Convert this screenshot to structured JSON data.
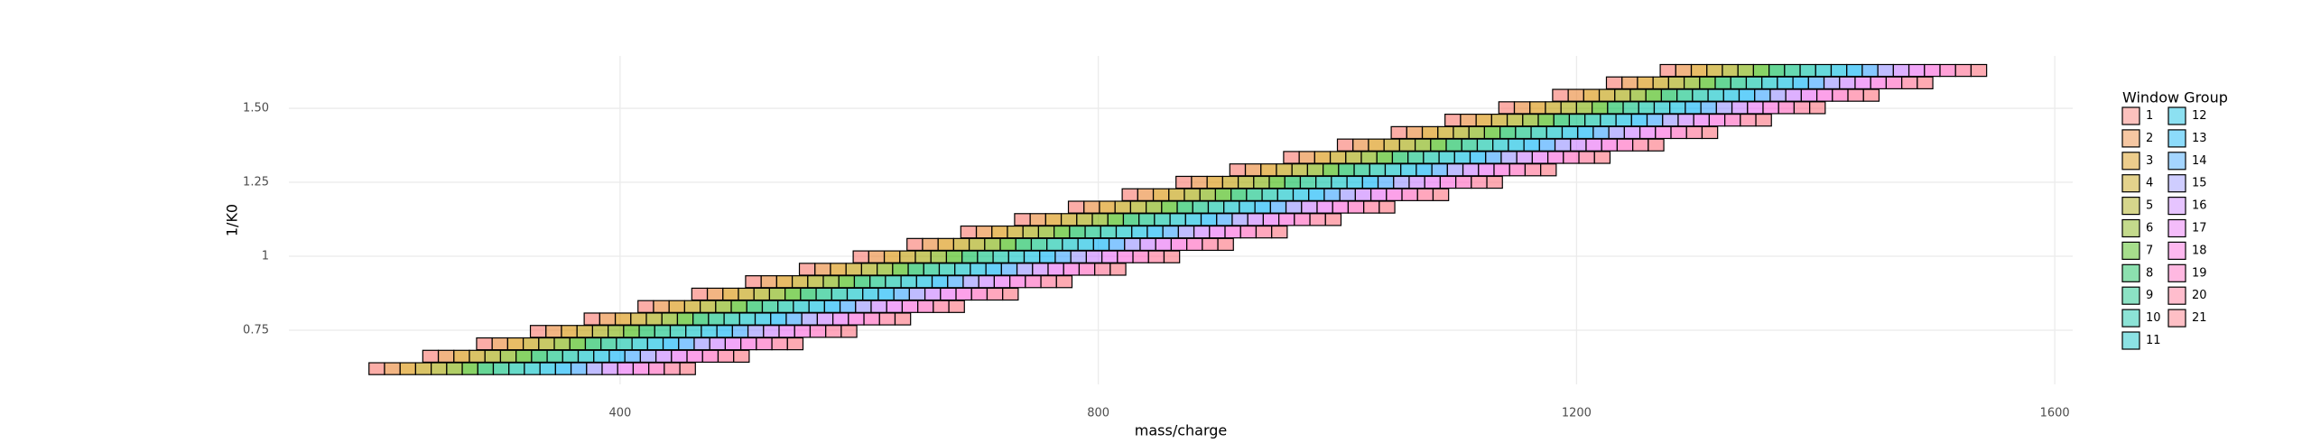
{
  "chart_data": {
    "type": "window-scheme",
    "x_label": "mass/charge",
    "y_label": "1/K0",
    "legend_title": "Window Group",
    "xlim": [
      123,
      1615
    ],
    "ylim": [
      0.567,
      1.677
    ],
    "xticks": [
      400,
      800,
      1200,
      1600
    ],
    "yticks": [
      0.75,
      1,
      1.25,
      {
        "value": 1.5,
        "label": "1.50"
      }
    ],
    "grid": true,
    "window_width": 13,
    "window_height": 0.04,
    "series": [
      {
        "name": "1",
        "color": "#F8766D"
      },
      {
        "name": "2",
        "color": "#EA8331"
      },
      {
        "name": "3",
        "color": "#D89000"
      },
      {
        "name": "4",
        "color": "#C09B00"
      },
      {
        "name": "5",
        "color": "#A3A500"
      },
      {
        "name": "6",
        "color": "#7CAE00"
      },
      {
        "name": "7",
        "color": "#39B600"
      },
      {
        "name": "8",
        "color": "#00BB4E"
      },
      {
        "name": "9",
        "color": "#00BF7D"
      },
      {
        "name": "10",
        "color": "#00C1A3"
      },
      {
        "name": "11",
        "color": "#00BFC4"
      },
      {
        "name": "12",
        "color": "#00BAE0"
      },
      {
        "name": "13",
        "color": "#00B0F6"
      },
      {
        "name": "14",
        "color": "#35A2FF"
      },
      {
        "name": "15",
        "color": "#9590FF"
      },
      {
        "name": "16",
        "color": "#C77CFF"
      },
      {
        "name": "17",
        "color": "#E76BF3"
      },
      {
        "name": "18",
        "color": "#FA62DB"
      },
      {
        "name": "19",
        "color": "#FF62BC"
      },
      {
        "name": "20",
        "color": "#FF6C91"
      },
      {
        "name": "21",
        "color": "#FC717F"
      }
    ],
    "rows": [
      {
        "mobility": 0.6,
        "mz": [
          190,
          203,
          216,
          229,
          242,
          255,
          268,
          281,
          294,
          307,
          320,
          333,
          346,
          359,
          372,
          385,
          398,
          411,
          424,
          437,
          450
        ]
      },
      {
        "mobility": 0.642,
        "mz": [
          235,
          248,
          261,
          274,
          287,
          300,
          313,
          326,
          339,
          352,
          365,
          378,
          391,
          404,
          417,
          430,
          443,
          456,
          469,
          482,
          495
        ]
      },
      {
        "mobility": 0.684,
        "mz": [
          280,
          293,
          306,
          319,
          332,
          345,
          358,
          371,
          384,
          397,
          410,
          423,
          436,
          449,
          462,
          475,
          488,
          501,
          514,
          527,
          540
        ]
      },
      {
        "mobility": 0.726,
        "mz": [
          325,
          338,
          351,
          364,
          377,
          390,
          403,
          416,
          429,
          442,
          455,
          468,
          481,
          494,
          507,
          520,
          533,
          546,
          559,
          572,
          585
        ]
      },
      {
        "mobility": 0.768,
        "mz": [
          370,
          383,
          396,
          409,
          422,
          435,
          448,
          461,
          474,
          487,
          500,
          513,
          526,
          539,
          552,
          565,
          578,
          591,
          604,
          617,
          630
        ]
      },
      {
        "mobility": 0.81,
        "mz": [
          415,
          428,
          441,
          454,
          467,
          480,
          493,
          506,
          519,
          532,
          545,
          558,
          571,
          584,
          597,
          610,
          623,
          636,
          649,
          662,
          675
        ]
      },
      {
        "mobility": 0.852,
        "mz": [
          460,
          473,
          486,
          499,
          512,
          525,
          538,
          551,
          564,
          577,
          590,
          603,
          616,
          629,
          642,
          655,
          668,
          681,
          694,
          707,
          720
        ]
      },
      {
        "mobility": 0.894,
        "mz": [
          505,
          518,
          531,
          544,
          557,
          570,
          583,
          596,
          609,
          622,
          635,
          648,
          661,
          674,
          687,
          700,
          713,
          726,
          739,
          752,
          765
        ]
      },
      {
        "mobility": 0.936,
        "mz": [
          550,
          563,
          576,
          589,
          602,
          615,
          628,
          641,
          654,
          667,
          680,
          693,
          706,
          719,
          732,
          745,
          758,
          771,
          784,
          797,
          810
        ]
      },
      {
        "mobility": 0.978,
        "mz": [
          595,
          608,
          621,
          634,
          647,
          660,
          673,
          686,
          699,
          712,
          725,
          738,
          751,
          764,
          777,
          790,
          803,
          816,
          829,
          842,
          855
        ]
      },
      {
        "mobility": 1.02,
        "mz": [
          640,
          653,
          666,
          679,
          692,
          705,
          718,
          731,
          744,
          757,
          770,
          783,
          796,
          809,
          822,
          835,
          848,
          861,
          874,
          887,
          900
        ]
      },
      {
        "mobility": 1.062,
        "mz": [
          685,
          698,
          711,
          724,
          737,
          750,
          763,
          776,
          789,
          802,
          815,
          828,
          841,
          854,
          867,
          880,
          893,
          906,
          919,
          932,
          945
        ]
      },
      {
        "mobility": 1.104,
        "mz": [
          730,
          743,
          756,
          769,
          782,
          795,
          808,
          821,
          834,
          847,
          860,
          873,
          886,
          899,
          912,
          925,
          938,
          951,
          964,
          977,
          990
        ]
      },
      {
        "mobility": 1.146,
        "mz": [
          775,
          788,
          801,
          814,
          827,
          840,
          853,
          866,
          879,
          892,
          905,
          918,
          931,
          944,
          957,
          970,
          983,
          996,
          1009,
          1022,
          1035
        ]
      },
      {
        "mobility": 1.188,
        "mz": [
          820,
          833,
          846,
          859,
          872,
          885,
          898,
          911,
          924,
          937,
          950,
          963,
          976,
          989,
          1002,
          1015,
          1028,
          1041,
          1054,
          1067,
          1080
        ]
      },
      {
        "mobility": 1.23,
        "mz": [
          865,
          878,
          891,
          904,
          917,
          930,
          943,
          956,
          969,
          982,
          995,
          1008,
          1021,
          1034,
          1047,
          1060,
          1073,
          1086,
          1099,
          1112,
          1125
        ]
      },
      {
        "mobility": 1.272,
        "mz": [
          910,
          923,
          936,
          949,
          962,
          975,
          988,
          1001,
          1014,
          1027,
          1040,
          1053,
          1066,
          1079,
          1092,
          1105,
          1118,
          1131,
          1144,
          1157,
          1170
        ]
      },
      {
        "mobility": 1.314,
        "mz": [
          955,
          968,
          981,
          994,
          1007,
          1020,
          1033,
          1046,
          1059,
          1072,
          1085,
          1098,
          1111,
          1124,
          1137,
          1150,
          1163,
          1176,
          1189,
          1202,
          1215
        ]
      },
      {
        "mobility": 1.356,
        "mz": [
          1000,
          1013,
          1026,
          1039,
          1052,
          1065,
          1078,
          1091,
          1104,
          1117,
          1130,
          1143,
          1156,
          1169,
          1182,
          1195,
          1208,
          1221,
          1234,
          1247,
          1260
        ]
      },
      {
        "mobility": 1.398,
        "mz": [
          1045,
          1058,
          1071,
          1084,
          1097,
          1110,
          1123,
          1136,
          1149,
          1162,
          1175,
          1188,
          1201,
          1214,
          1227,
          1240,
          1253,
          1266,
          1279,
          1292,
          1305
        ]
      },
      {
        "mobility": 1.44,
        "mz": [
          1090,
          1103,
          1116,
          1129,
          1142,
          1155,
          1168,
          1181,
          1194,
          1207,
          1220,
          1233,
          1246,
          1259,
          1272,
          1285,
          1298,
          1311,
          1324,
          1337,
          1350
        ]
      },
      {
        "mobility": 1.482,
        "mz": [
          1135,
          1148,
          1161,
          1174,
          1187,
          1200,
          1213,
          1226,
          1239,
          1252,
          1265,
          1278,
          1291,
          1304,
          1317,
          1330,
          1343,
          1356,
          1369,
          1382,
          1395
        ]
      },
      {
        "mobility": 1.524,
        "mz": [
          1180,
          1193,
          1206,
          1219,
          1232,
          1245,
          1258,
          1271,
          1284,
          1297,
          1310,
          1323,
          1336,
          1349,
          1362,
          1375,
          1388,
          1401,
          1414,
          1427,
          1440
        ]
      },
      {
        "mobility": 1.566,
        "mz": [
          1225,
          1238,
          1251,
          1264,
          1277,
          1290,
          1303,
          1316,
          1329,
          1342,
          1355,
          1368,
          1381,
          1394,
          1407,
          1420,
          1433,
          1446,
          1459,
          1472,
          1485
        ]
      },
      {
        "mobility": 1.608,
        "mz": [
          1270,
          1283,
          1296,
          1309,
          1322,
          1335,
          1348,
          1361,
          1374,
          1387,
          1400,
          1413,
          1426,
          1439,
          1452,
          1465,
          1478,
          1491,
          1504,
          1517,
          1530
        ]
      }
    ]
  }
}
